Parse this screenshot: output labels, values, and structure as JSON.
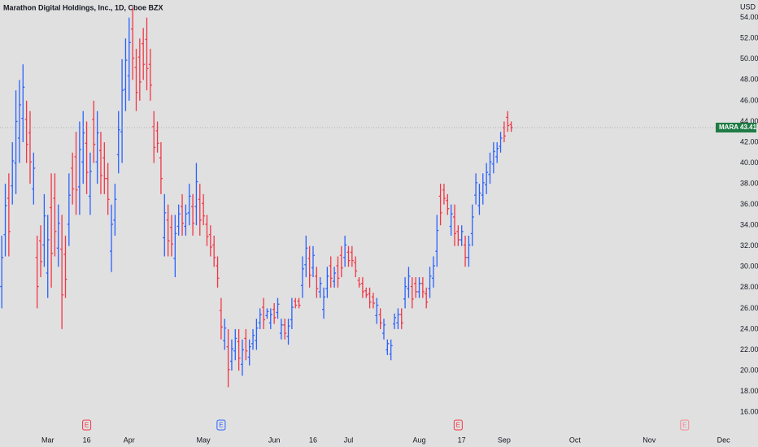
{
  "chart_data": {
    "type": "ohlc",
    "title": "Marathon Digital Holdings, Inc., 1D, Cboe BZX",
    "currency": "USD",
    "symbol": "MARA",
    "up_color": "#2962ff",
    "down_color": "#f23645",
    "last_price_color": "#1e7b45",
    "background": "#e0e0e0",
    "grid": false,
    "x": [
      0,
      1,
      2,
      3,
      4,
      5,
      6,
      7,
      8,
      9,
      10,
      11,
      12,
      13,
      14,
      15,
      16,
      17,
      18,
      19,
      20,
      21,
      22,
      23,
      24,
      25,
      26,
      27,
      28,
      29,
      30,
      31,
      32,
      33,
      34,
      35,
      36,
      37,
      38,
      39,
      40,
      41,
      42,
      43,
      44,
      45,
      46,
      47,
      48,
      49,
      50,
      51,
      52,
      53,
      54,
      55,
      56,
      57,
      58,
      59,
      60,
      61,
      62,
      63,
      64,
      65,
      66,
      67,
      68,
      69,
      70,
      71,
      72,
      73,
      74,
      75,
      76,
      77,
      78,
      79,
      80,
      81,
      82,
      83,
      84,
      85,
      86,
      87,
      88,
      89,
      90,
      91,
      92,
      93,
      94,
      95,
      96,
      97,
      98,
      99,
      100,
      101,
      102,
      103,
      104,
      105,
      106,
      107,
      108,
      109,
      110,
      111,
      112,
      113,
      114,
      115,
      116,
      117,
      118,
      119,
      120,
      121,
      122,
      123,
      124,
      125,
      126,
      127,
      128,
      129,
      130,
      131,
      132,
      133,
      134,
      135,
      136,
      137,
      138,
      139,
      140,
      141,
      142,
      143,
      144
    ],
    "open": [
      28.1,
      33.1,
      36.6,
      37.8,
      40,
      42.4,
      44.3,
      44.2,
      42.9,
      37.5,
      30.9,
      32.5,
      32.1,
      29.4,
      35.7,
      36.6,
      31.8,
      31.7,
      31.2,
      34.1,
      39.5,
      40.6,
      37.7,
      40.1,
      41.9,
      36.8,
      44.2,
      40.1,
      41.2,
      40.5,
      38.5,
      31.5,
      34.5,
      40.8,
      43,
      47.1,
      48.4,
      52.9,
      49.2,
      50.2,
      51.5,
      51.9,
      49.5,
      43.5,
      43.1,
      40.5,
      32.8,
      34.5,
      33.8,
      30.8,
      33.9,
      35.8,
      33.9,
      35.2,
      35.8,
      35.8,
      36.5,
      36.1,
      34.1,
      33.1,
      32.1,
      30.1,
      25.8,
      22.9,
      22.3,
      20.9,
      21.9,
      22.8,
      20.6,
      23.1,
      21.3,
      22.6,
      22.9,
      24.6,
      26.1,
      25.3,
      24.6,
      25.9,
      25.6,
      23.6,
      24.4,
      23.3,
      24.9,
      26.7,
      26.7,
      28.2,
      30.2,
      30.8,
      29.9,
      29.1,
      27.6,
      25.9,
      27.9,
      30.1,
      28.6,
      30.1,
      31.1,
      30.9,
      31.4,
      31.4,
      30.4,
      28.7,
      28.4,
      27.7,
      27.4,
      27.1,
      25.3,
      25.4,
      23.6,
      22,
      21.6,
      24.5,
      24.6,
      25.4,
      26.9,
      27.9,
      28.1,
      28.4,
      27.6,
      28.4,
      27.4,
      27.9,
      28.9,
      31.5,
      36.8,
      37.4,
      36.4,
      33.9,
      34.8,
      33.4,
      32.6,
      32.1,
      30.9,
      33.2,
      36.9,
      35.9,
      36.9,
      37.9,
      38.9,
      39.9,
      40.6,
      41.6,
      43.4,
      44.4,
      43.7
    ],
    "high": [
      33,
      38,
      39,
      42,
      47,
      48,
      49.5,
      46,
      45,
      41,
      33,
      34,
      37,
      35,
      39,
      39,
      36,
      35,
      33,
      39,
      41,
      43,
      44,
      45,
      44,
      41,
      46,
      45,
      43,
      42,
      40,
      36,
      38,
      45,
      50,
      52,
      54,
      55,
      51,
      52,
      53,
      54,
      51,
      45,
      44,
      42,
      37,
      36,
      35,
      35,
      36,
      37,
      36,
      38,
      37,
      40,
      38,
      37,
      35,
      34,
      33,
      31,
      27,
      25,
      24,
      23,
      24,
      24,
      23,
      24,
      23,
      24,
      25,
      26,
      27,
      26,
      26,
      26.5,
      27,
      25,
      25,
      25,
      27,
      27,
      27,
      31,
      33,
      32,
      32,
      30,
      29,
      28,
      30,
      31,
      30,
      31,
      32,
      33,
      32,
      32,
      31,
      29,
      29,
      28,
      28,
      27.5,
      27,
      26,
      25,
      23,
      23,
      25.5,
      26,
      26,
      29,
      30,
      29,
      29,
      29,
      29,
      28,
      30,
      31,
      35,
      38,
      38,
      37,
      36,
      36,
      34,
      34,
      33,
      33,
      36,
      39,
      38,
      39,
      40,
      41,
      42,
      42,
      43,
      44,
      45,
      44
    ],
    "low": [
      26,
      31,
      31,
      36,
      37,
      40,
      42,
      40,
      38,
      36,
      26,
      29,
      30,
      27,
      28,
      31,
      30,
      24,
      27,
      32,
      36,
      35,
      35,
      38,
      37,
      35,
      40,
      38,
      37,
      37,
      35,
      29.5,
      33,
      39,
      40,
      45,
      46,
      48,
      45,
      46,
      48,
      47,
      46,
      40,
      41,
      37,
      31,
      31,
      31,
      29,
      33,
      33,
      33,
      34,
      33,
      34,
      33,
      34,
      32,
      31,
      30,
      28,
      23,
      22,
      18.4,
      20,
      21,
      20,
      19.5,
      21,
      20.5,
      22,
      22,
      24,
      24,
      25,
      24,
      24.5,
      25,
      23,
      23,
      22.5,
      24,
      26,
      26,
      27,
      29,
      28,
      29,
      27,
      27,
      25,
      27,
      28,
      28,
      28,
      29,
      30,
      30,
      30,
      29,
      28,
      27,
      27,
      26,
      26,
      24.5,
      24,
      23,
      21.5,
      21,
      24,
      24,
      24,
      26,
      27,
      26,
      27,
      27,
      27,
      26,
      27,
      28,
      30,
      34,
      36,
      35,
      33,
      32,
      32,
      32,
      30,
      30,
      32,
      36,
      35,
      36,
      37,
      38,
      39,
      40,
      41,
      42,
      43,
      43
    ],
    "close": [
      30.9,
      35.9,
      33.4,
      40.2,
      44,
      45.6,
      47.3,
      41.8,
      40.1,
      39.5,
      28.1,
      30.5,
      34.9,
      32.6,
      31.3,
      33.4,
      34.2,
      27.3,
      28.8,
      36.9,
      37.5,
      37.4,
      41.3,
      42.9,
      39.1,
      39.2,
      41.8,
      42.9,
      38.8,
      38.5,
      36.5,
      34.1,
      36.5,
      43.2,
      47,
      49.9,
      51.6,
      50.1,
      46.8,
      47.8,
      49.5,
      49.1,
      47.5,
      41.5,
      41.9,
      38.5,
      35.2,
      32.5,
      32.2,
      33.2,
      35.1,
      34.2,
      35.1,
      36.8,
      34.2,
      38.2,
      34.5,
      34.9,
      32.9,
      31.9,
      30.9,
      28.9,
      24.2,
      24.1,
      20.1,
      22.1,
      23.1,
      21.2,
      22,
      21.9,
      22.3,
      23.4,
      24.1,
      25.4,
      24.9,
      25.7,
      25.4,
      25.1,
      26.4,
      24.4,
      23.6,
      24.3,
      26.1,
      26.3,
      26.3,
      29.8,
      31.8,
      29.2,
      31.1,
      27.9,
      28.4,
      27.1,
      29.1,
      28.9,
      29.4,
      28.9,
      29.9,
      32.1,
      30.6,
      30.6,
      29.6,
      28.3,
      27.6,
      27.3,
      26.6,
      26.5,
      26.3,
      24.6,
      24.4,
      22.6,
      22.4,
      25.1,
      25.4,
      24.6,
      28.1,
      29.1,
      26.9,
      27.6,
      28.4,
      27.6,
      26.6,
      29.1,
      30.1,
      33.5,
      35.2,
      36.6,
      35.6,
      35.1,
      33.2,
      32.6,
      33.4,
      30.9,
      32.1,
      34.8,
      38.1,
      37.1,
      38.1,
      39.1,
      40.1,
      41.1,
      41.4,
      42.4,
      42.6,
      43.6,
      43.41
    ],
    "xlim": [
      -0.5,
      205.7
    ],
    "ylim": [
      14.6,
      55.7
    ],
    "xticks": [
      {
        "value": 13,
        "label": "Mar"
      },
      {
        "value": 24,
        "label": "16"
      },
      {
        "value": 36,
        "label": "Apr"
      },
      {
        "value": 57,
        "label": "May"
      },
      {
        "value": 77,
        "label": "Jun"
      },
      {
        "value": 88,
        "label": "16"
      },
      {
        "value": 98,
        "label": "Jul"
      },
      {
        "value": 118,
        "label": "Aug"
      },
      {
        "value": 130,
        "label": "17"
      },
      {
        "value": 142,
        "label": "Sep"
      },
      {
        "value": 162,
        "label": "Oct"
      },
      {
        "value": 183,
        "label": "Nov"
      },
      {
        "value": 204,
        "label": "Dec"
      }
    ],
    "yticks": [
      {
        "value": 16,
        "label": "16.00"
      },
      {
        "value": 18,
        "label": "18.00"
      },
      {
        "value": 20,
        "label": "20.00"
      },
      {
        "value": 22,
        "label": "22.00"
      },
      {
        "value": 24,
        "label": "24.00"
      },
      {
        "value": 26,
        "label": "26.00"
      },
      {
        "value": 28,
        "label": "28.00"
      },
      {
        "value": 30,
        "label": "30.00"
      },
      {
        "value": 32,
        "label": "32.00"
      },
      {
        "value": 34,
        "label": "34.00"
      },
      {
        "value": 36,
        "label": "36.00"
      },
      {
        "value": 38,
        "label": "38.00"
      },
      {
        "value": 40,
        "label": "40.00"
      },
      {
        "value": 42,
        "label": "42.00"
      },
      {
        "value": 44,
        "label": "44.00"
      },
      {
        "value": 46,
        "label": "46.00"
      },
      {
        "value": 48,
        "label": "48.00"
      },
      {
        "value": 50,
        "label": "50.00"
      },
      {
        "value": 52,
        "label": "52.00"
      },
      {
        "value": 54,
        "label": "54.00"
      }
    ],
    "events": [
      {
        "x": 24,
        "label": "E",
        "color": "#f23645"
      },
      {
        "x": 62,
        "label": "E",
        "color": "#2962ff"
      },
      {
        "x": 129,
        "label": "E",
        "color": "#f23645"
      },
      {
        "x": 193,
        "label": "E",
        "color": "#f08a93"
      }
    ]
  }
}
